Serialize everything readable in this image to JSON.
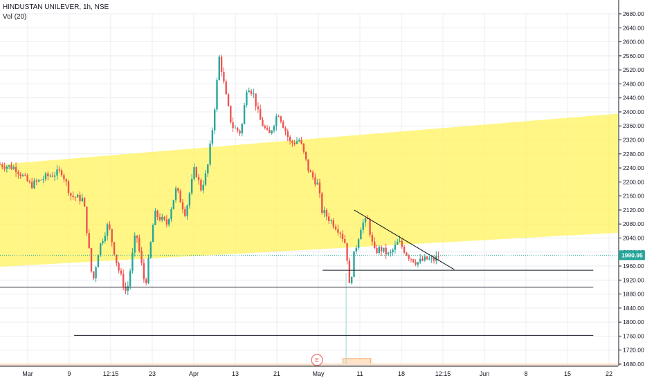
{
  "header": {
    "title": "HINDUSTAN UNILEVER, 1h, NSE",
    "volume_label": "Vol (20)"
  },
  "colors": {
    "up": "#26a69a",
    "down": "#ef5350",
    "channel": "#fff35c",
    "last_price": "#26a69a",
    "grid": "#e9ecf1"
  },
  "chart_data": {
    "type": "candlestick",
    "price_axis": {
      "ticks": [
        1680,
        1720,
        1760,
        1800,
        1840,
        1880,
        1920,
        1960,
        2000,
        2040,
        2080,
        2120,
        2160,
        2200,
        2240,
        2280,
        2320,
        2360,
        2400,
        2440,
        2480,
        2520,
        2560,
        2600,
        2640,
        2680
      ],
      "tick_labels": [
        "1680.00",
        "1720.00",
        "1760.00",
        "1800.00",
        "1840.00",
        "1880.00",
        "1920.00",
        "1960.00",
        "2000.00",
        "2040.00",
        "2080.00",
        "2120.00",
        "2160.00",
        "2200.00",
        "2240.00",
        "2280.00",
        "2320.00",
        "2360.00",
        "2400.00",
        "2440.00",
        "2480.00",
        "2520.00",
        "2560.00",
        "2600.00",
        "2640.00",
        "2680.00"
      ],
      "range": [
        1672,
        2700
      ]
    },
    "time_axis": {
      "labels": [
        "Mar",
        "9",
        "12:15",
        "23",
        "Apr",
        "13",
        "21",
        "May",
        "11",
        "18",
        "12:15",
        "Jun",
        "8",
        "15",
        "22"
      ]
    },
    "last_price": {
      "value": 1990.95,
      "label": "1990.95"
    },
    "close_path": [
      [
        0,
        2250
      ],
      [
        0.025,
        2240
      ],
      [
        0.05,
        2190
      ],
      [
        0.075,
        2215
      ],
      [
        0.1,
        2230
      ],
      [
        0.115,
        2160
      ],
      [
        0.135,
        2150
      ],
      [
        0.15,
        1910
      ],
      [
        0.16,
        2010
      ],
      [
        0.175,
        2080
      ],
      [
        0.19,
        1960
      ],
      [
        0.205,
        1880
      ],
      [
        0.22,
        2060
      ],
      [
        0.235,
        1900
      ],
      [
        0.25,
        2110
      ],
      [
        0.27,
        2080
      ],
      [
        0.285,
        2180
      ],
      [
        0.3,
        2110
      ],
      [
        0.315,
        2240
      ],
      [
        0.325,
        2180
      ],
      [
        0.335,
        2230
      ],
      [
        0.345,
        2370
      ],
      [
        0.355,
        2560
      ],
      [
        0.365,
        2450
      ],
      [
        0.375,
        2360
      ],
      [
        0.39,
        2340
      ],
      [
        0.4,
        2480
      ],
      [
        0.41,
        2450
      ],
      [
        0.42,
        2380
      ],
      [
        0.435,
        2330
      ],
      [
        0.45,
        2400
      ],
      [
        0.47,
        2310
      ],
      [
        0.485,
        2320
      ],
      [
        0.5,
        2230
      ],
      [
        0.515,
        2190
      ],
      [
        0.52,
        2120
      ],
      [
        0.535,
        2090
      ],
      [
        0.55,
        2060
      ],
      [
        0.56,
        2020
      ],
      [
        0.566,
        1890
      ],
      [
        0.572,
        1985
      ],
      [
        0.585,
        2080
      ],
      [
        0.595,
        2090
      ],
      [
        0.605,
        2000
      ],
      [
        0.615,
        2010
      ],
      [
        0.63,
        1990
      ],
      [
        0.645,
        2030
      ],
      [
        0.66,
        1990
      ],
      [
        0.675,
        1970
      ],
      [
        0.69,
        1980
      ],
      [
        0.7,
        1975
      ],
      [
        0.71,
        1990
      ]
    ],
    "drawings": [
      {
        "kind": "band",
        "from": [
          0,
          2250
        ],
        "to": [
          1,
          2395
        ],
        "lower_from": [
          0,
          1958
        ],
        "lower_to": [
          1,
          2055
        ]
      },
      {
        "kind": "trendline",
        "from": [
          0.573,
          2120
        ],
        "to": [
          0.735,
          1950
        ]
      },
      {
        "kind": "hline",
        "value": 1948,
        "x_from": 0.522,
        "x_to": 0.96
      },
      {
        "kind": "hline",
        "value": 1900,
        "x_from": 0,
        "x_to": 0.96
      },
      {
        "kind": "hline",
        "value": 1762,
        "x_from": 0.12,
        "x_to": 0.96
      }
    ],
    "events": [
      {
        "label": "E",
        "x": 0.513
      }
    ],
    "volume": {
      "spike_x": 0.56,
      "band_from": 0.555,
      "band_to": 0.6
    }
  }
}
